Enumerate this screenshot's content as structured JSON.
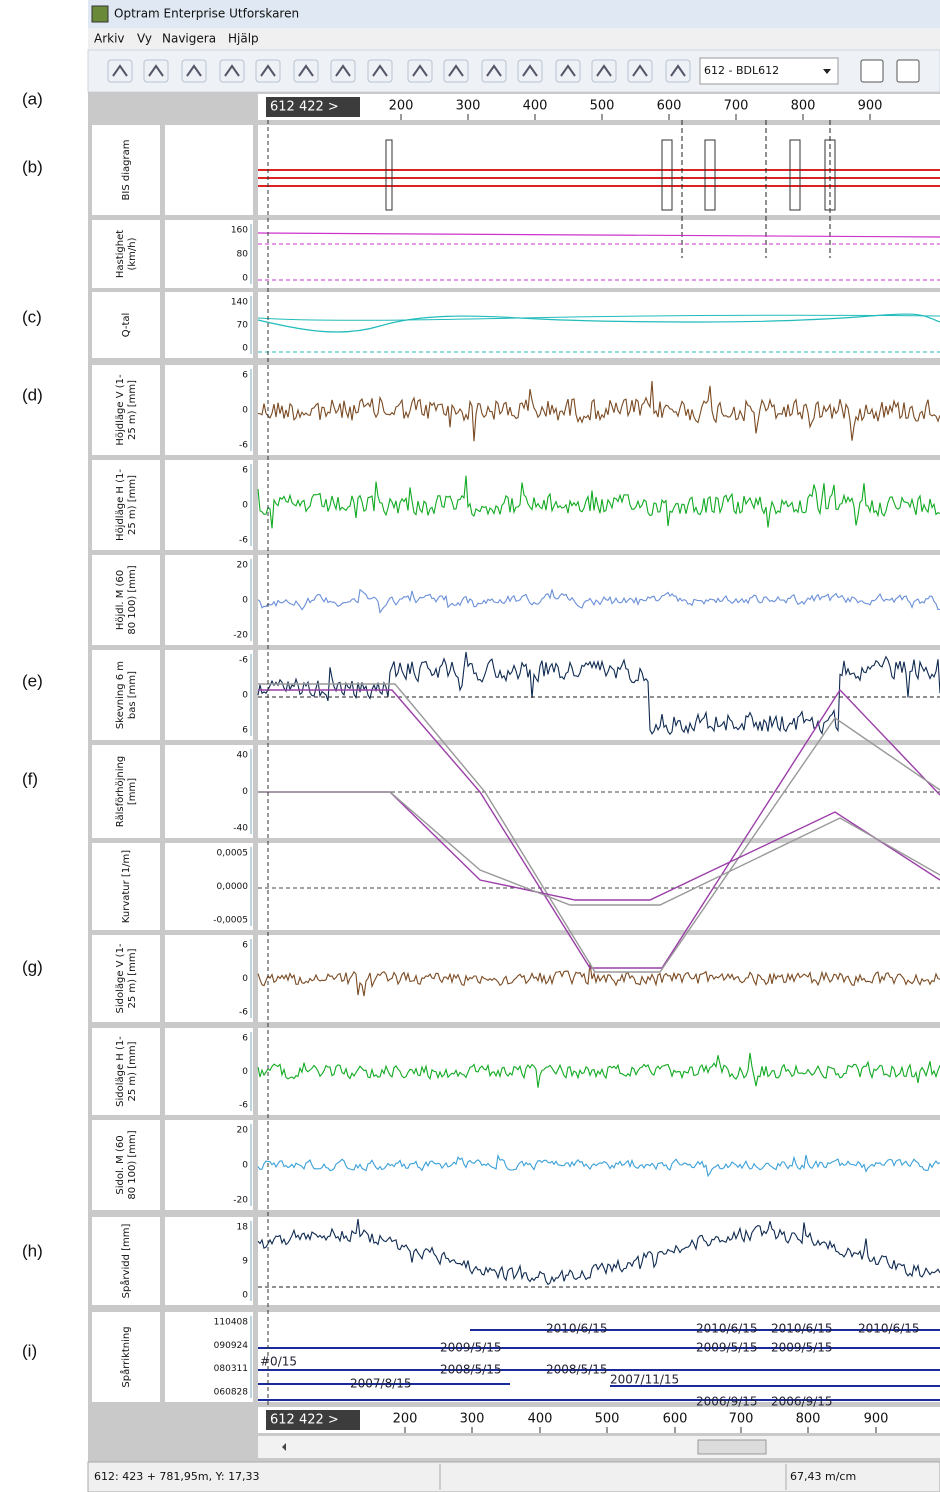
{
  "window": {
    "title": "Optram Enterprise Utforskaren",
    "menu": [
      "Arkiv",
      "Vy",
      "Navigera",
      "Hjälp"
    ],
    "dropdown": "612 - BDL612"
  },
  "side_labels": [
    "(a)",
    "(b)",
    "(c)",
    "(d)",
    "(e)",
    "(f)",
    "(g)",
    "(h)",
    "(i)"
  ],
  "ruler": {
    "start": "612 422 >",
    "ticks": [
      "200",
      "300",
      "400",
      "500",
      "600",
      "700",
      "800",
      "900"
    ]
  },
  "panels": [
    {
      "label": [
        "BIS diagram"
      ],
      "ticks": []
    },
    {
      "label": [
        "Hastighet",
        "(km/h)"
      ],
      "ticks": [
        "160",
        "80",
        "0"
      ]
    },
    {
      "label": [
        "Q-tal"
      ],
      "ticks": [
        "140",
        "70",
        "0"
      ]
    },
    {
      "label": [
        "Höjdläge V (1-",
        "25 m) [mm]"
      ],
      "ticks": [
        "6",
        "0",
        "-6"
      ]
    },
    {
      "label": [
        "Höjdläge H (1-",
        "25 m) [mm]"
      ],
      "ticks": [
        "6",
        "0",
        "-6"
      ]
    },
    {
      "label": [
        "Höjdl. M (60",
        "80 100) [mm]"
      ],
      "ticks": [
        "20",
        "0",
        "-20"
      ]
    },
    {
      "label": [
        "Skevning 6 m",
        "bas [mm]"
      ],
      "ticks": [
        "-6",
        "0",
        "6"
      ]
    },
    {
      "label": [
        "Rälsförhöjning",
        "[mm]"
      ],
      "ticks": [
        "40",
        "0",
        "-40"
      ]
    },
    {
      "label": [
        "Kurvatur [1/m]"
      ],
      "ticks": [
        "0,0005",
        "0,0000",
        "-0,0005"
      ]
    },
    {
      "label": [
        "Sidoläge V (1-",
        "25 m) [mm]"
      ],
      "ticks": [
        "6",
        "0",
        "-6"
      ]
    },
    {
      "label": [
        "Sidoläge H (1-",
        "25 m) [mm]"
      ],
      "ticks": [
        "6",
        "0",
        "-6"
      ]
    },
    {
      "label": [
        "Sidol. M (60",
        "80 100) [mm]"
      ],
      "ticks": [
        "20",
        "0",
        "-20"
      ]
    },
    {
      "label": [
        "Spårvidd [mm]"
      ],
      "ticks": [
        "18",
        "9",
        "0"
      ]
    },
    {
      "label": [
        "Spårriktning"
      ],
      "ticks": [
        "110408",
        "090924",
        "080311",
        "060828"
      ]
    }
  ],
  "track_dates": [
    "2010/6/15",
    "2010/6/15",
    "2010/6/15",
    "2010/6/15",
    "2009/5/15",
    "2009/5/15",
    "2009/5/15",
    "#0/15",
    "2008/5/15",
    "2008/5/15",
    "2007/8/15",
    "2007/11/15",
    "2006/9/15",
    "2006/9/15"
  ],
  "status": [
    "612: 423 + 781,95m, Y: 17,33",
    "67,43 m/cm"
  ]
}
